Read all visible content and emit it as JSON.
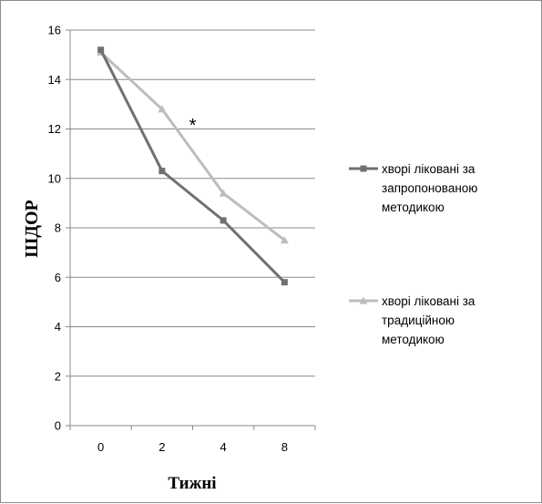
{
  "chart_data": {
    "type": "line",
    "categories": [
      "0",
      "2",
      "4",
      "8"
    ],
    "series": [
      {
        "name": "хворі ліковані за запропонованою методикою",
        "name_lines": [
          "хворі ліковані за",
          "запропонованою",
          "методикою"
        ],
        "values": [
          15.2,
          10.3,
          8.3,
          5.8
        ],
        "color": "#707070",
        "marker": "square"
      },
      {
        "name": "хворі ліковані за традиційною методикою",
        "name_lines": [
          "хворі ліковані за",
          "традиційною",
          "методикою"
        ],
        "values": [
          15.1,
          12.8,
          9.4,
          7.5
        ],
        "color": "#bdbdbd",
        "marker": "triangle"
      }
    ],
    "xlabel": "Тижні",
    "ylabel": "ШДОР",
    "ylim": [
      0,
      16
    ],
    "yticks": [
      0,
      2,
      4,
      6,
      8,
      10,
      12,
      14,
      16
    ],
    "grid": true,
    "legend_position": "right",
    "annotations": [
      {
        "text": "*",
        "x": 3,
        "y": 12.2
      }
    ]
  }
}
